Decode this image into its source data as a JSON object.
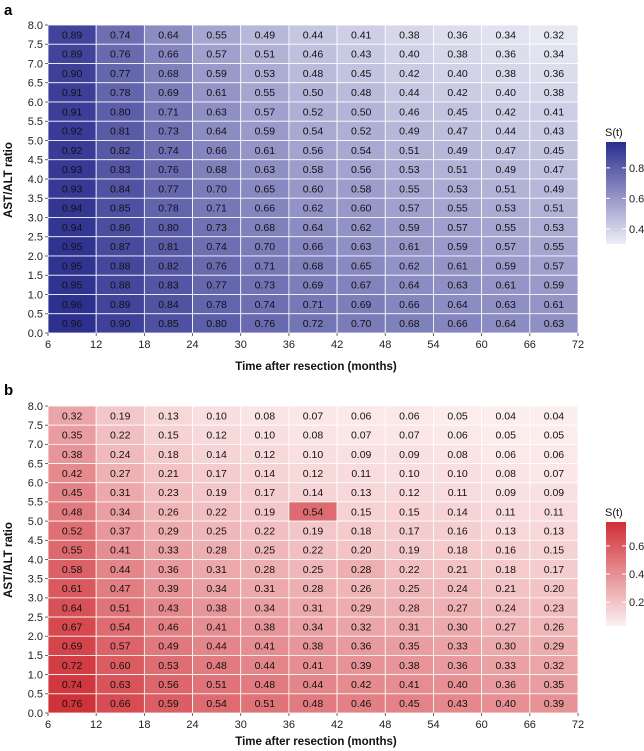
{
  "chart_data": [
    {
      "type": "heatmap",
      "panel_label": "a",
      "xlabel": "Time after resection (months)",
      "ylabel": "AST/ALT ratio",
      "x_ticks": [
        "6",
        "12",
        "18",
        "24",
        "30",
        "36",
        "42",
        "48",
        "54",
        "60",
        "66",
        "72"
      ],
      "x_range": [
        6,
        72
      ],
      "y_ticks": [
        "0.0",
        "0.5",
        "1.0",
        "1.5",
        "2.0",
        "2.5",
        "3.0",
        "3.5",
        "4.0",
        "4.5",
        "5.0",
        "5.5",
        "6.0",
        "6.5",
        "7.0",
        "7.5",
        "8.0"
      ],
      "y_range": [
        0,
        8
      ],
      "row_labels": [
        "7.75",
        "7.25",
        "6.75",
        "6.25",
        "5.75",
        "5.25",
        "4.75",
        "4.25",
        "3.75",
        "3.25",
        "2.75",
        "2.25",
        "1.75",
        "1.25",
        "0.75",
        "0.25"
      ],
      "cell_values": [
        [
          "0.89",
          "0.74",
          "0.64",
          "0.55",
          "0.49",
          "0.44",
          "0.41",
          "0.38",
          "0.36",
          "0.34",
          "0.32"
        ],
        [
          "0.89",
          "0.76",
          "0.66",
          "0.57",
          "0.51",
          "0.46",
          "0.43",
          "0.40",
          "0.38",
          "0.36",
          "0.34"
        ],
        [
          "0.90",
          "0.77",
          "0.68",
          "0.59",
          "0.53",
          "0.48",
          "0.45",
          "0.42",
          "0.40",
          "0.38",
          "0.36"
        ],
        [
          "0.91",
          "0.78",
          "0.69",
          "0.61",
          "0.55",
          "0.50",
          "0.48",
          "0.44",
          "0.42",
          "0.40",
          "0.38"
        ],
        [
          "0.91",
          "0.80",
          "0.71",
          "0.63",
          "0.57",
          "0.52",
          "0.50",
          "0.46",
          "0.45",
          "0.42",
          "0.41"
        ],
        [
          "0.92",
          "0.81",
          "0.73",
          "0.64",
          "0.59",
          "0.54",
          "0.52",
          "0.49",
          "0.47",
          "0.44",
          "0.43"
        ],
        [
          "0.92",
          "0.82",
          "0.74",
          "0.66",
          "0.61",
          "0.56",
          "0.54",
          "0.51",
          "0.49",
          "0.47",
          "0.45"
        ],
        [
          "0.93",
          "0.83",
          "0.76",
          "0.68",
          "0.63",
          "0.58",
          "0.56",
          "0.53",
          "0.51",
          "0.49",
          "0.47"
        ],
        [
          "0.93",
          "0.84",
          "0.77",
          "0.70",
          "0.65",
          "0.60",
          "0.58",
          "0.55",
          "0.53",
          "0.51",
          "0.49"
        ],
        [
          "0.94",
          "0.85",
          "0.78",
          "0.71",
          "0.66",
          "0.62",
          "0.60",
          "0.57",
          "0.55",
          "0.53",
          "0.51"
        ],
        [
          "0.94",
          "0.86",
          "0.80",
          "0.73",
          "0.68",
          "0.64",
          "0.62",
          "0.59",
          "0.57",
          "0.55",
          "0.53"
        ],
        [
          "0.95",
          "0.87",
          "0.81",
          "0.74",
          "0.70",
          "0.66",
          "0.63",
          "0.61",
          "0.59",
          "0.57",
          "0.55"
        ],
        [
          "0.95",
          "0.88",
          "0.82",
          "0.76",
          "0.71",
          "0.68",
          "0.65",
          "0.62",
          "0.61",
          "0.59",
          "0.57"
        ],
        [
          "0.95",
          "0.88",
          "0.83",
          "0.77",
          "0.73",
          "0.69",
          "0.67",
          "0.64",
          "0.63",
          "0.61",
          "0.59"
        ],
        [
          "0.96",
          "0.89",
          "0.84",
          "0.78",
          "0.74",
          "0.71",
          "0.69",
          "0.66",
          "0.64",
          "0.63",
          "0.61"
        ],
        [
          "0.96",
          "0.90",
          "0.85",
          "0.80",
          "0.76",
          "0.72",
          "0.70",
          "0.68",
          "0.66",
          "0.64",
          "0.63"
        ]
      ],
      "color_low": "#eeeef7",
      "color_high": "#2b2d8e",
      "color_domain": [
        0.3,
        0.97
      ],
      "legend": {
        "title": "S(t)",
        "ticks": [
          "0.4",
          "0.6",
          "0.8"
        ]
      }
    },
    {
      "type": "heatmap",
      "panel_label": "b",
      "xlabel": "Time after resection (months)",
      "ylabel": "AST/ALT ratio",
      "x_ticks": [
        "6",
        "12",
        "18",
        "24",
        "30",
        "36",
        "42",
        "48",
        "54",
        "60",
        "66",
        "72"
      ],
      "x_range": [
        6,
        72
      ],
      "y_ticks": [
        "0.0",
        "0.5",
        "1.0",
        "1.5",
        "2.0",
        "2.5",
        "3.0",
        "3.5",
        "4.0",
        "4.5",
        "5.0",
        "5.5",
        "6.0",
        "6.5",
        "7.0",
        "7.5",
        "8.0"
      ],
      "y_range": [
        0,
        8
      ],
      "row_labels": [
        "7.75",
        "7.25",
        "6.75",
        "6.25",
        "5.75",
        "5.25",
        "4.75",
        "4.25",
        "3.75",
        "3.25",
        "2.75",
        "2.25",
        "1.75",
        "1.25",
        "0.75",
        "0.25"
      ],
      "cell_values": [
        [
          "0.32",
          "0.19",
          "0.13",
          "0.10",
          "0.08",
          "0.07",
          "0.06",
          "0.06",
          "0.05",
          "0.04",
          "0.04"
        ],
        [
          "0.35",
          "0.22",
          "0.15",
          "0.12",
          "0.10",
          "0.08",
          "0.07",
          "0.07",
          "0.06",
          "0.05",
          "0.05"
        ],
        [
          "0.38",
          "0.24",
          "0.18",
          "0.14",
          "0.12",
          "0.10",
          "0.09",
          "0.09",
          "0.08",
          "0.06",
          "0.06"
        ],
        [
          "0.42",
          "0.27",
          "0.21",
          "0.17",
          "0.14",
          "0.12",
          "0.11",
          "0.10",
          "0.10",
          "0.08",
          "0.07"
        ],
        [
          "0.45",
          "0.31",
          "0.23",
          "0.19",
          "0.17",
          "0.14",
          "0.13",
          "0.12",
          "0.11",
          "0.09",
          "0.09"
        ],
        [
          "0.48",
          "0.34",
          "0.26",
          "0.22",
          "0.19",
          "0.54",
          "0.15",
          "0.15",
          "0.14",
          "0.11",
          "0.11"
        ],
        [
          "0.52",
          "0.37",
          "0.29",
          "0.25",
          "0.22",
          "0.19",
          "0.18",
          "0.17",
          "0.16",
          "0.13",
          "0.13"
        ],
        [
          "0.55",
          "0.41",
          "0.33",
          "0.28",
          "0.25",
          "0.22",
          "0.20",
          "0.19",
          "0.18",
          "0.16",
          "0.15"
        ],
        [
          "0.58",
          "0.44",
          "0.36",
          "0.31",
          "0.28",
          "0.25",
          "0.28",
          "0.22",
          "0.21",
          "0.18",
          "0.17"
        ],
        [
          "0.61",
          "0.47",
          "0.39",
          "0.34",
          "0.31",
          "0.28",
          "0.26",
          "0.25",
          "0.24",
          "0.21",
          "0.20"
        ],
        [
          "0.64",
          "0.51",
          "0.43",
          "0.38",
          "0.34",
          "0.31",
          "0.29",
          "0.28",
          "0.27",
          "0.24",
          "0.23"
        ],
        [
          "0.67",
          "0.54",
          "0.46",
          "0.41",
          "0.38",
          "0.34",
          "0.32",
          "0.31",
          "0.30",
          "0.27",
          "0.26"
        ],
        [
          "0.69",
          "0.57",
          "0.49",
          "0.44",
          "0.41",
          "0.38",
          "0.36",
          "0.35",
          "0.33",
          "0.30",
          "0.29"
        ],
        [
          "0.72",
          "0.60",
          "0.53",
          "0.48",
          "0.44",
          "0.41",
          "0.39",
          "0.38",
          "0.36",
          "0.33",
          "0.32"
        ],
        [
          "0.74",
          "0.63",
          "0.56",
          "0.51",
          "0.48",
          "0.44",
          "0.42",
          "0.41",
          "0.40",
          "0.36",
          "0.35"
        ],
        [
          "0.76",
          "0.66",
          "0.59",
          "0.54",
          "0.51",
          "0.48",
          "0.46",
          "0.45",
          "0.43",
          "0.40",
          "0.39"
        ]
      ],
      "color_low": "#fdf1f1",
      "color_high": "#cf2f36",
      "color_domain": [
        0.03,
        0.77
      ],
      "legend": {
        "title": "S(t)",
        "ticks": [
          "0.2",
          "0.4",
          "0.6"
        ]
      }
    }
  ]
}
